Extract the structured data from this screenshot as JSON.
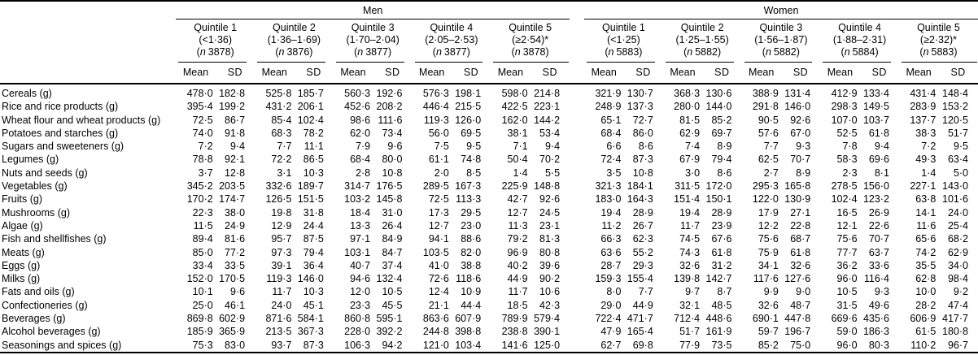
{
  "punct": {
    "open_paren": "(",
    "close_paren": ")"
  },
  "table": {
    "n_label": "n",
    "stat_headers": {
      "mean": "Mean",
      "sd": "SD"
    },
    "groups": [
      {
        "label": "Men",
        "quintiles": [
          {
            "label": "Quintile 1",
            "range": "(<1·36)",
            "n": "3878"
          },
          {
            "label": "Quintile 2",
            "range": "(1·36–1·69)",
            "n": "3876"
          },
          {
            "label": "Quintile 3",
            "range": "(1·70–2·04)",
            "n": "3877"
          },
          {
            "label": "Quintile 4",
            "range": "(2·05–2·53)",
            "n": "3877"
          },
          {
            "label": "Quintile 5",
            "range": "(≥2·54)*",
            "n": "3878"
          }
        ]
      },
      {
        "label": "Women",
        "quintiles": [
          {
            "label": "Quintile 1",
            "range": "(<1·25)",
            "n": "5883"
          },
          {
            "label": "Quintile 2",
            "range": "(1·25–1·55)",
            "n": "5882"
          },
          {
            "label": "Quintile 3",
            "range": "(1·56–1·87)",
            "n": "5882"
          },
          {
            "label": "Quintile 4",
            "range": "(1·88–2·31)",
            "n": "5884"
          },
          {
            "label": "Quintile 5",
            "range": "(≥2·32)*",
            "n": "5883"
          }
        ]
      }
    ],
    "rows": [
      {
        "label": "Cereals (g)",
        "values": [
          "478·0",
          "182·8",
          "525·8",
          "185·7",
          "560·3",
          "192·6",
          "576·3",
          "198·1",
          "598·0",
          "214·8",
          "321·9",
          "130·7",
          "368·3",
          "130·6",
          "388·9",
          "131·4",
          "412·9",
          "133·4",
          "431·4",
          "148·4"
        ]
      },
      {
        "label": "Rice and rice products (g)",
        "values": [
          "395·4",
          "199·2",
          "431·2",
          "206·1",
          "452·6",
          "208·2",
          "446·4",
          "215·5",
          "422·5",
          "223·1",
          "248·9",
          "137·3",
          "280·0",
          "144·0",
          "291·8",
          "146·0",
          "298·3",
          "149·5",
          "283·9",
          "153·2"
        ]
      },
      {
        "label": "Wheat flour and wheat products (g)",
        "values": [
          "72·5",
          "86·7",
          "85·4",
          "102·4",
          "98·6",
          "111·6",
          "119·3",
          "126·0",
          "162·0",
          "144·2",
          "65·1",
          "72·7",
          "81·5",
          "85·2",
          "90·5",
          "92·6",
          "107·0",
          "103·7",
          "137·7",
          "120·5"
        ]
      },
      {
        "label": "Potatoes and starches (g)",
        "values": [
          "74·0",
          "91·8",
          "68·3",
          "78·2",
          "62·0",
          "73·4",
          "56·0",
          "69·5",
          "38·1",
          "53·4",
          "68·4",
          "86·0",
          "62·9",
          "69·7",
          "57·6",
          "67·0",
          "52·5",
          "61·8",
          "38·3",
          "51·7"
        ]
      },
      {
        "label": "Sugars and sweeteners (g)",
        "values": [
          "7·2",
          "9·4",
          "7·7",
          "11·1",
          "7·9",
          "9·6",
          "7·5",
          "9·5",
          "7·1",
          "9·4",
          "6·6",
          "8·6",
          "7·4",
          "8·9",
          "7·7",
          "9·3",
          "7·8",
          "9·4",
          "7·2",
          "9·5"
        ]
      },
      {
        "label": "Legumes (g)",
        "values": [
          "78·8",
          "92·1",
          "72·2",
          "86·5",
          "68·4",
          "80·0",
          "61·1",
          "74·8",
          "50·4",
          "70·2",
          "72·4",
          "87·3",
          "67·9",
          "79·4",
          "62·5",
          "70·7",
          "58·3",
          "69·6",
          "49·3",
          "63·4"
        ]
      },
      {
        "label": "Nuts and seeds (g)",
        "values": [
          "3·7",
          "12·8",
          "3·1",
          "10·3",
          "2·8",
          "10·8",
          "2·0",
          "8·5",
          "1·4",
          "5·5",
          "3·5",
          "10·8",
          "3·0",
          "8·6",
          "2·7",
          "8·9",
          "2·3",
          "8·1",
          "1·4",
          "5·0"
        ]
      },
      {
        "label": "Vegetables (g)",
        "values": [
          "345·2",
          "203·5",
          "332·6",
          "189·7",
          "314·7",
          "176·5",
          "289·5",
          "167·3",
          "225·9",
          "148·8",
          "321·3",
          "184·1",
          "311·5",
          "172·0",
          "295·3",
          "165·8",
          "278·5",
          "156·0",
          "227·1",
          "143·0"
        ]
      },
      {
        "label": "Fruits (g)",
        "values": [
          "170·2",
          "174·7",
          "126·5",
          "151·5",
          "103·2",
          "145·8",
          "72·5",
          "113·3",
          "42·7",
          "92·6",
          "183·0",
          "164·3",
          "151·4",
          "150·1",
          "122·0",
          "130·9",
          "102·4",
          "123·2",
          "63·8",
          "101·6"
        ]
      },
      {
        "label": "Mushrooms (g)",
        "values": [
          "22·3",
          "38·0",
          "19·8",
          "31·8",
          "18·4",
          "31·0",
          "17·3",
          "29·5",
          "12·7",
          "24·5",
          "19·4",
          "28·9",
          "19·4",
          "28·9",
          "17·9",
          "27·1",
          "16·5",
          "26·9",
          "14·1",
          "24·0"
        ]
      },
      {
        "label": "Algae (g)",
        "values": [
          "11·5",
          "24·9",
          "12·9",
          "24·4",
          "13·3",
          "26·4",
          "12·7",
          "23·0",
          "11·3",
          "23·1",
          "11·2",
          "26·7",
          "11·7",
          "23·9",
          "12·2",
          "22·8",
          "12·1",
          "22·6",
          "11·6",
          "25·4"
        ]
      },
      {
        "label": "Fish and shellfishes (g)",
        "values": [
          "89·4",
          "81·6",
          "95·7",
          "87·5",
          "97·1",
          "84·9",
          "94·1",
          "88·6",
          "79·2",
          "81·3",
          "66·3",
          "62·3",
          "74·5",
          "67·6",
          "75·6",
          "68·7",
          "75·6",
          "70·7",
          "65·6",
          "68·2"
        ]
      },
      {
        "label": "Meats (g)",
        "values": [
          "85·0",
          "77·2",
          "97·3",
          "79·4",
          "103·1",
          "84·7",
          "103·5",
          "82·0",
          "96·9",
          "80·8",
          "63·6",
          "55·2",
          "74·3",
          "61·8",
          "75·9",
          "61·8",
          "77·7",
          "63·7",
          "74·2",
          "62·9"
        ]
      },
      {
        "label": "Eggs (g)",
        "values": [
          "33·4",
          "33·5",
          "39·1",
          "36·4",
          "40·7",
          "37·4",
          "41·0",
          "38·8",
          "40·2",
          "39·6",
          "28·7",
          "29·3",
          "32·6",
          "31·2",
          "34·1",
          "32·6",
          "36·2",
          "33·6",
          "35·5",
          "34·0"
        ]
      },
      {
        "label": "Milks (g)",
        "values": [
          "152·0",
          "170·5",
          "119·3",
          "146·0",
          "94·6",
          "132·4",
          "72·6",
          "118·6",
          "44·9",
          "90·2",
          "159·3",
          "155·4",
          "139·8",
          "142·7",
          "117·6",
          "127·6",
          "96·0",
          "116·4",
          "62·8",
          "98·4"
        ]
      },
      {
        "label": "Fats and oils (g)",
        "values": [
          "10·1",
          "9·6",
          "11·7",
          "10·3",
          "12·0",
          "10·5",
          "12·4",
          "10·9",
          "11·7",
          "10·6",
          "8·0",
          "7·7",
          "9·7",
          "8·7",
          "9·9",
          "9·0",
          "10·5",
          "9·3",
          "10·0",
          "9·2"
        ]
      },
      {
        "label": "Confectioneries (g)",
        "values": [
          "25·0",
          "46·1",
          "24·0",
          "45·1",
          "23·3",
          "45·5",
          "21·1",
          "44·4",
          "18·5",
          "42·3",
          "29·0",
          "44·9",
          "32·1",
          "48·5",
          "32·6",
          "48·7",
          "31·5",
          "49·6",
          "28·2",
          "47·4"
        ]
      },
      {
        "label": "Beverages (g)",
        "values": [
          "869·8",
          "602·9",
          "871·6",
          "584·1",
          "860·8",
          "595·1",
          "863·6",
          "607·9",
          "789·9",
          "579·4",
          "722·4",
          "471·7",
          "712·4",
          "448·6",
          "690·1",
          "447·8",
          "669·6",
          "435·6",
          "606·9",
          "417·7"
        ]
      },
      {
        "label": "Alcohol beverages (g)",
        "values": [
          "185·9",
          "365·9",
          "213·5",
          "367·3",
          "228·0",
          "392·2",
          "244·8",
          "398·8",
          "238·8",
          "390·1",
          "47·9",
          "165·4",
          "51·7",
          "161·9",
          "59·7",
          "196·7",
          "59·0",
          "186·3",
          "61·5",
          "180·8"
        ]
      },
      {
        "label": "Seasonings and spices (g)",
        "values": [
          "75·3",
          "83·0",
          "93·7",
          "87·3",
          "106·3",
          "94·2",
          "121·0",
          "103·4",
          "141·6",
          "125·0",
          "62·7",
          "69·8",
          "77·9",
          "73·5",
          "85·2",
          "75·0",
          "96·0",
          "80·3",
          "110·2",
          "96·7"
        ]
      }
    ]
  }
}
